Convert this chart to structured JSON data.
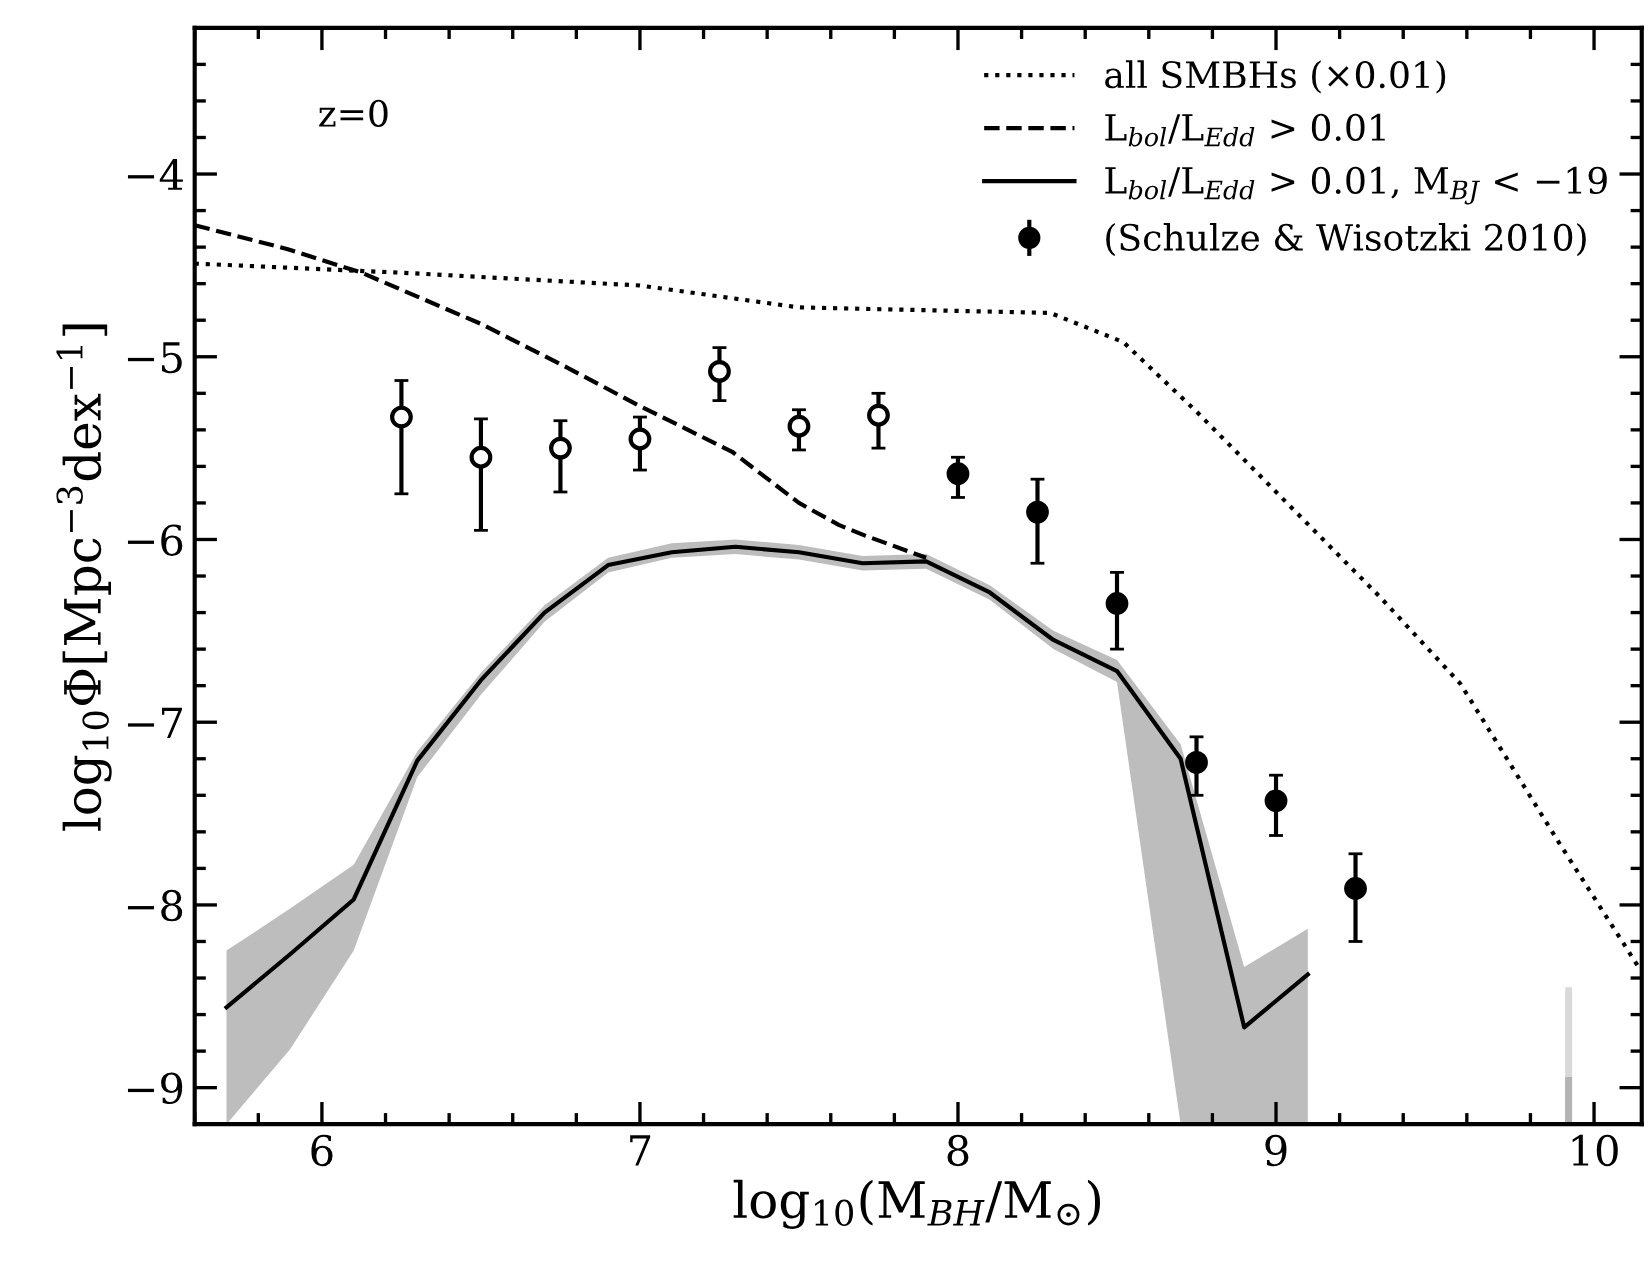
{
  "chart_data": {
    "type": "line",
    "xlabel": "log$_{10}$(M$_{BH}$/M$_{⊙}$)",
    "ylabel": "log$_{10}$Φ[Mpc$^{−3}$dex$^{−1}$]",
    "annotations": [
      "z=0"
    ],
    "xlim": [
      5.6,
      10.15
    ],
    "ylim": [
      -9.2,
      -3.2
    ],
    "xticks": [
      6,
      7,
      8,
      9,
      10
    ],
    "yticks": [
      -9,
      -8,
      -7,
      -6,
      -5,
      -4
    ],
    "grid": false,
    "legend": "top right",
    "series": [
      {
        "name": "all SMBHs (×0.01)",
        "line_style": "dotted",
        "color": "#000000",
        "x": [
          5.6,
          6.25,
          7.0,
          7.5,
          8.29,
          8.52,
          8.75,
          9.33,
          9.58,
          9.89,
          10.14
        ],
        "values": [
          -4.49,
          -4.54,
          -4.61,
          -4.73,
          -4.76,
          -4.92,
          -5.3,
          -6.32,
          -6.79,
          -7.66,
          -8.34
        ]
      },
      {
        "name": "L$_{bol}$/L$_{Edd}$ > 0.01",
        "line_style": "dashed",
        "color": "#000000",
        "x": [
          5.6,
          5.89,
          6.125,
          6.5,
          6.75,
          7.0,
          7.29,
          7.5,
          7.625,
          7.71,
          7.9
        ],
        "values": [
          -4.28,
          -4.41,
          -4.54,
          -4.82,
          -5.04,
          -5.27,
          -5.52,
          -5.8,
          -5.92,
          -5.98,
          -6.1
        ]
      },
      {
        "name": "L$_{bol}$/L$_{Edd}$ > 0.01, M$_{BJ}$ < −19",
        "line_style": "solid",
        "color": "#000000",
        "x": [
          5.7,
          5.9,
          6.1,
          6.3,
          6.5,
          6.7,
          6.9,
          7.1,
          7.3,
          7.5,
          7.7,
          7.9,
          8.1,
          8.3,
          8.5,
          8.7,
          8.9,
          9.1
        ],
        "values": [
          -8.56,
          -8.27,
          -7.97,
          -7.21,
          -6.77,
          -6.4,
          -6.14,
          -6.07,
          -6.04,
          -6.07,
          -6.13,
          -6.12,
          -6.29,
          -6.55,
          -6.72,
          -7.2,
          -8.67,
          -8.38
        ],
        "upper": [
          -8.25,
          -8.02,
          -7.78,
          -7.16,
          -6.73,
          -6.36,
          -6.1,
          -6.02,
          -6.0,
          -6.03,
          -6.09,
          -6.08,
          -6.25,
          -6.5,
          -6.66,
          -7.12,
          -8.34,
          -8.13
        ],
        "lower": [
          -9.2,
          -8.79,
          -8.25,
          -7.3,
          -6.85,
          -6.45,
          -6.18,
          -6.1,
          -6.08,
          -6.11,
          -6.17,
          -6.16,
          -6.33,
          -6.6,
          -6.78,
          -9.2,
          -9.2,
          -9.2
        ]
      },
      {
        "line_style": "solid",
        "color": "#d9d9d9",
        "x": [
          9.92,
          9.92
        ],
        "values": [
          -9.2,
          -8.47
        ]
      },
      {
        "line_style": "solid",
        "color": "#b3b3b3",
        "x": [
          9.92,
          9.92
        ],
        "values": [
          -9.2,
          -8.96
        ]
      },
      {
        "type": "scatter",
        "marker": "circle",
        "color": "#000000",
        "x": [
          6.25,
          6.5,
          6.75,
          7.0,
          7.25,
          7.5,
          7.75
        ],
        "values": [
          -5.33,
          -5.55,
          -5.5,
          -5.45,
          -5.08,
          -5.38,
          -5.32
        ],
        "errors": [
          [
            -5.75,
            -5.13
          ],
          [
            -5.95,
            -5.34
          ],
          [
            -5.74,
            -5.35
          ],
          [
            -5.62,
            -5.33
          ],
          [
            -5.24,
            -4.95
          ],
          [
            -5.51,
            -5.29
          ],
          [
            -5.5,
            -5.2
          ]
        ],
        "colors": [
          "#ffffff",
          "#ffffff",
          "#ffffff",
          "#ffffff",
          "#ffffff",
          "#ffffff",
          "#ffffff"
        ]
      },
      {
        "name": "(Schulze & Wisotzki 2010)",
        "type": "scatter",
        "marker": "circle",
        "color": "#000000",
        "x": [
          8.0,
          8.25,
          8.5,
          8.75,
          9.0,
          9.25
        ],
        "values": [
          -5.64,
          -5.85,
          -6.35,
          -7.22,
          -7.43,
          -7.91
        ],
        "errors": [
          [
            -5.77,
            -5.55
          ],
          [
            -6.13,
            -5.67
          ],
          [
            -6.6,
            -6.18
          ],
          [
            -7.4,
            -7.08
          ],
          [
            -7.62,
            -7.29
          ],
          [
            -8.2,
            -7.72
          ]
        ]
      }
    ]
  }
}
